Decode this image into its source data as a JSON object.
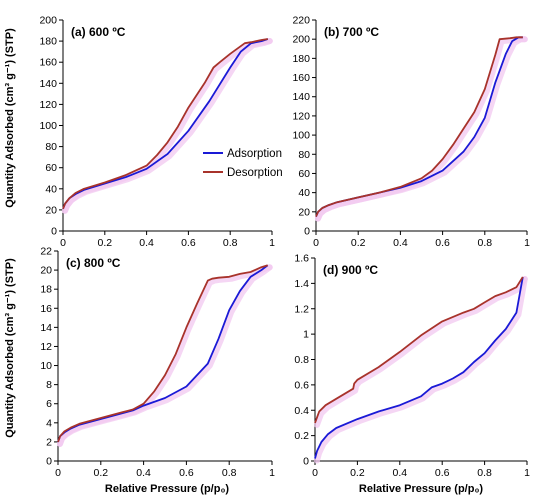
{
  "figure": {
    "ylabel": "Quantity Adsorbed (cm³ g⁻¹) (STP)",
    "xlabel": "Relative Pressure  (p/p₀)",
    "legend": {
      "position": "inside panel (a), right",
      "entries": [
        "Adsorption",
        "Desorption"
      ]
    }
  },
  "colors": {
    "adsorption": "#1a1ad6",
    "desorption": "#a8332b",
    "shadow": "#f2c8f0",
    "axis": "#000000"
  },
  "chart_data": [
    {
      "type": "line",
      "panel_label": "(a) 600 ºC",
      "xlim": [
        0,
        1
      ],
      "ylim": [
        0,
        200
      ],
      "xticks": [
        "0",
        "0.2",
        "0.4",
        "0.6",
        "0.8",
        "1"
      ],
      "yticks": [
        "0",
        "20",
        "40",
        "60",
        "80",
        "100",
        "120",
        "140",
        "160",
        "180",
        "200"
      ],
      "series": [
        {
          "name": "Adsorption",
          "x": [
            0.0,
            0.01,
            0.03,
            0.06,
            0.1,
            0.2,
            0.3,
            0.4,
            0.5,
            0.6,
            0.7,
            0.8,
            0.85,
            0.9,
            0.95,
            0.98
          ],
          "y": [
            21,
            26,
            31,
            35,
            39,
            45,
            51,
            59,
            73,
            95,
            123,
            155,
            170,
            178,
            180,
            182
          ]
        },
        {
          "name": "Desorption",
          "x": [
            0.98,
            0.95,
            0.9,
            0.87,
            0.8,
            0.75,
            0.72,
            0.68,
            0.6,
            0.55,
            0.5,
            0.45,
            0.4,
            0.3,
            0.2,
            0.1,
            0.06,
            0.03,
            0.01,
            0.0
          ],
          "y": [
            182,
            181,
            179,
            178,
            168,
            160,
            155,
            141,
            117,
            99,
            84,
            72,
            62,
            53,
            46,
            40,
            36,
            31,
            26,
            21
          ]
        }
      ]
    },
    {
      "type": "line",
      "panel_label": "(b) 700 ºC",
      "xlim": [
        0,
        1
      ],
      "ylim": [
        0,
        220
      ],
      "xticks": [
        "0",
        "0.2",
        "0.4",
        "0.6",
        "0.8",
        "1"
      ],
      "yticks": [
        "0",
        "20",
        "40",
        "60",
        "80",
        "100",
        "120",
        "140",
        "160",
        "180",
        "200",
        "220"
      ],
      "series": [
        {
          "name": "Adsorption",
          "x": [
            0.0,
            0.01,
            0.03,
            0.06,
            0.1,
            0.2,
            0.3,
            0.4,
            0.5,
            0.6,
            0.7,
            0.75,
            0.8,
            0.85,
            0.9,
            0.93,
            0.96,
            0.98
          ],
          "y": [
            15,
            20,
            24,
            27,
            30,
            35,
            40,
            45,
            52,
            63,
            83,
            98,
            118,
            155,
            185,
            198,
            202,
            202
          ]
        },
        {
          "name": "Desorption",
          "x": [
            0.98,
            0.95,
            0.92,
            0.87,
            0.85,
            0.8,
            0.75,
            0.7,
            0.65,
            0.6,
            0.55,
            0.5,
            0.4,
            0.3,
            0.2,
            0.1,
            0.06,
            0.03,
            0.01,
            0.0
          ],
          "y": [
            202,
            202,
            201,
            200,
            184,
            148,
            124,
            107,
            90,
            75,
            63,
            55,
            46,
            40,
            35,
            30,
            27,
            24,
            20,
            15
          ]
        }
      ]
    },
    {
      "type": "line",
      "panel_label": "(c) 800 ºC",
      "xlim": [
        0,
        1
      ],
      "ylim": [
        0,
        22
      ],
      "xticks": [
        "0",
        "0.2",
        "0.4",
        "0.6",
        "0.8",
        "1"
      ],
      "yticks": [
        "0",
        "2",
        "4",
        "6",
        "8",
        "10",
        "12",
        "14",
        "16",
        "18",
        "20",
        "22"
      ],
      "series": [
        {
          "name": "Adsorption",
          "x": [
            0.0,
            0.01,
            0.03,
            0.06,
            0.1,
            0.2,
            0.3,
            0.35,
            0.4,
            0.5,
            0.6,
            0.7,
            0.75,
            0.8,
            0.85,
            0.9,
            0.95,
            0.98
          ],
          "y": [
            2.0,
            2.6,
            3.0,
            3.4,
            3.8,
            4.4,
            5.0,
            5.3,
            5.8,
            6.6,
            7.8,
            10.2,
            12.8,
            15.8,
            17.8,
            19.3,
            20.0,
            20.5
          ]
        },
        {
          "name": "Desorption",
          "x": [
            0.98,
            0.95,
            0.9,
            0.85,
            0.8,
            0.75,
            0.72,
            0.7,
            0.65,
            0.6,
            0.55,
            0.5,
            0.45,
            0.4,
            0.35,
            0.3,
            0.2,
            0.1,
            0.06,
            0.03,
            0.01,
            0.0
          ],
          "y": [
            20.5,
            20.3,
            19.8,
            19.6,
            19.3,
            19.2,
            19.1,
            18.9,
            16.5,
            14.0,
            11.2,
            9.0,
            7.3,
            6.0,
            5.4,
            5.1,
            4.5,
            3.9,
            3.5,
            3.1,
            2.6,
            2.0
          ]
        }
      ]
    },
    {
      "type": "line",
      "panel_label": "(d) 900 ºC",
      "xlim": [
        0,
        1
      ],
      "ylim": [
        0,
        1.6
      ],
      "xticks": [
        "0",
        "0.2",
        "0.4",
        "0.6",
        "0.8",
        "1"
      ],
      "yticks": [
        "0",
        "0.2",
        "0.4",
        "0.6",
        "0.8",
        "1",
        "1.2",
        "1.4",
        "1.6"
      ],
      "series": [
        {
          "name": "Adsorption",
          "x": [
            0.0,
            0.01,
            0.03,
            0.06,
            0.1,
            0.2,
            0.3,
            0.4,
            0.5,
            0.55,
            0.6,
            0.65,
            0.7,
            0.75,
            0.8,
            0.85,
            0.9,
            0.95,
            0.98
          ],
          "y": [
            0.02,
            0.08,
            0.15,
            0.21,
            0.26,
            0.33,
            0.39,
            0.44,
            0.51,
            0.58,
            0.61,
            0.65,
            0.7,
            0.78,
            0.85,
            0.95,
            1.04,
            1.17,
            1.45
          ]
        },
        {
          "name": "Desorption",
          "x": [
            0.98,
            0.95,
            0.9,
            0.85,
            0.8,
            0.75,
            0.7,
            0.6,
            0.5,
            0.4,
            0.3,
            0.2,
            0.185,
            0.18,
            0.1,
            0.05,
            0.02,
            0.0
          ],
          "y": [
            1.45,
            1.37,
            1.33,
            1.3,
            1.25,
            1.2,
            1.17,
            1.1,
            0.99,
            0.86,
            0.74,
            0.64,
            0.61,
            0.57,
            0.49,
            0.44,
            0.39,
            0.3
          ]
        }
      ]
    }
  ]
}
